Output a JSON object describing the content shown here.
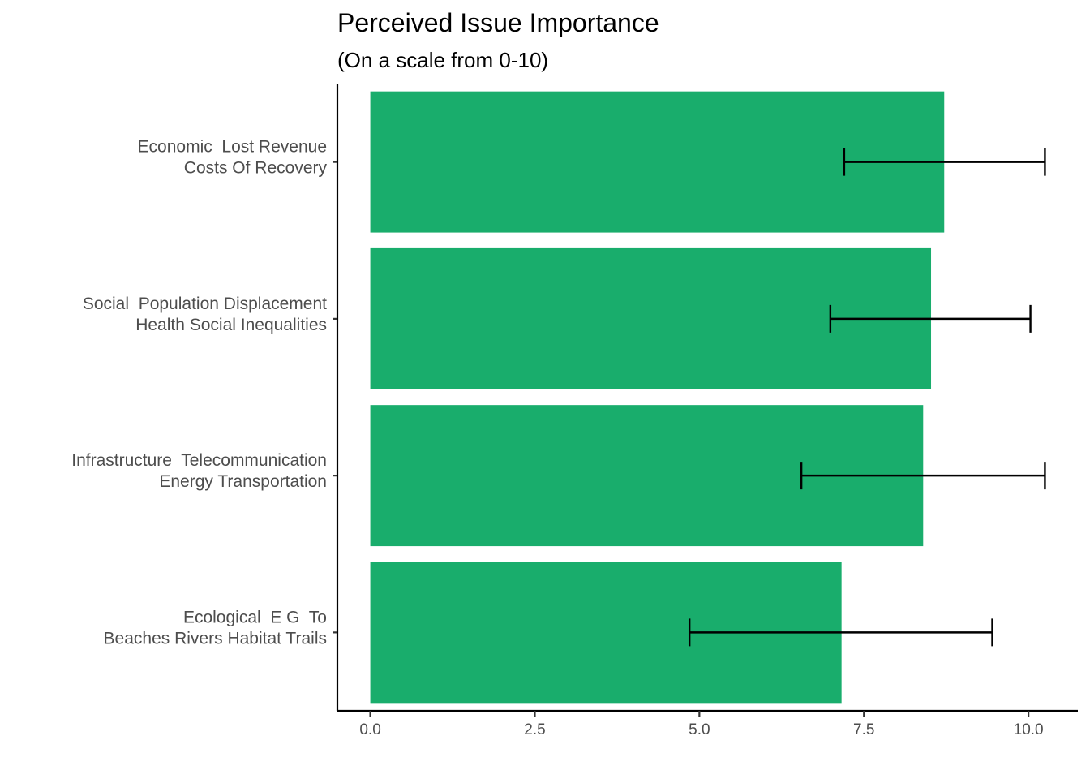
{
  "chart_data": {
    "type": "bar",
    "orientation": "horizontal",
    "title": "Perceived Issue Importance",
    "subtitle": "(On a scale from 0-10)",
    "xlabel": "",
    "ylabel": "",
    "categories": [
      [
        "Economic  Lost Revenue",
        "Costs Of Recovery"
      ],
      [
        "Social  Population Displacement",
        "Health Social Inequalities"
      ],
      [
        "Infrastructure  Telecommunication",
        "Energy Transportation"
      ],
      [
        "Ecological  E G  To",
        "Beaches Rivers Habitat Trails"
      ]
    ],
    "values": [
      8.72,
      8.52,
      8.4,
      7.16
    ],
    "error_low": [
      7.2,
      6.99,
      6.55,
      4.85
    ],
    "error_high": [
      10.25,
      10.03,
      10.25,
      9.45
    ],
    "xlim": [
      -0.5,
      10.75
    ],
    "xticks": [
      0,
      2.5,
      5,
      7.5,
      10
    ],
    "xtick_labels": [
      "0.0",
      "2.5",
      "5.0",
      "7.5",
      "10.0"
    ],
    "grid": false,
    "bar_color": "#19ad6c",
    "errorbar_color": "#000000"
  }
}
